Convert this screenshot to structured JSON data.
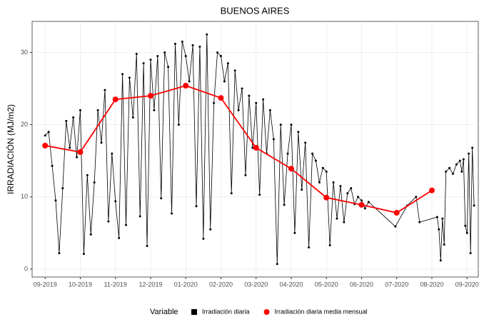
{
  "chart_data": {
    "type": "line",
    "title": "BUENOS AIRES",
    "y_label": "IRRADIACIÓN (MJ/m2)",
    "legend_title": "Variable",
    "xlim": [
      -0.37,
      12.32
    ],
    "ylim": [
      -1.1,
      34.3
    ],
    "xticks": [
      {
        "value": 0,
        "label": "09-2019"
      },
      {
        "value": 1,
        "label": "10-2019"
      },
      {
        "value": 2,
        "label": "11-2019"
      },
      {
        "value": 3,
        "label": "12-2019"
      },
      {
        "value": 4,
        "label": "01-2020"
      },
      {
        "value": 5,
        "label": "02-2020"
      },
      {
        "value": 6,
        "label": "03-2020"
      },
      {
        "value": 7,
        "label": "04-2020"
      },
      {
        "value": 8,
        "label": "05-2020"
      },
      {
        "value": 9,
        "label": "06-2020"
      },
      {
        "value": 10,
        "label": "07-2020"
      },
      {
        "value": 11,
        "label": "08-2020"
      },
      {
        "value": 12,
        "label": "09-2020"
      }
    ],
    "yticks": [
      0,
      10,
      20,
      30
    ],
    "grid": true,
    "legend": "bottom",
    "series": [
      {
        "name": "Irradiación diaria",
        "color": "#000000",
        "marker": "square",
        "x": [
          0,
          0.1,
          0.2,
          0.3,
          0.4,
          0.5,
          0.6,
          0.7,
          0.8,
          0.9,
          1,
          1.1,
          1.2,
          1.3,
          1.4,
          1.5,
          1.6,
          1.7,
          1.8,
          1.9,
          2,
          2.1,
          2.2,
          2.3,
          2.4,
          2.5,
          2.6,
          2.7,
          2.8,
          2.9,
          3,
          3.1,
          3.2,
          3.3,
          3.4,
          3.5,
          3.6,
          3.7,
          3.8,
          3.9,
          4,
          4.1,
          4.2,
          4.3,
          4.4,
          4.5,
          4.6,
          4.7,
          4.8,
          4.9,
          5,
          5.1,
          5.2,
          5.3,
          5.4,
          5.5,
          5.6,
          5.7,
          5.8,
          5.9,
          6,
          6.1,
          6.2,
          6.3,
          6.4,
          6.5,
          6.6,
          6.7,
          6.8,
          6.9,
          7,
          7.1,
          7.2,
          7.3,
          7.4,
          7.5,
          7.6,
          7.7,
          7.8,
          7.9,
          8,
          8.1,
          8.2,
          8.3,
          8.4,
          8.5,
          8.6,
          8.7,
          8.8,
          8.9,
          9,
          9.1,
          9.2,
          9.96,
          10.3,
          10.55,
          10.65,
          11.15,
          11.2,
          11.25,
          11.3,
          11.35,
          11.4,
          11.5,
          11.6,
          11.7,
          11.8,
          11.85,
          11.9,
          11.95,
          12,
          12.05,
          12.1,
          12.15,
          12.2
        ],
        "values": [
          18.5,
          19,
          14.3,
          9.5,
          2.2,
          11.2,
          20.5,
          16.8,
          21,
          15.5,
          22,
          2.1,
          13,
          4.8,
          12,
          22,
          17.5,
          24.8,
          6.6,
          16,
          9.4,
          4.3,
          27,
          6.1,
          26.5,
          21,
          29.8,
          7.3,
          28.5,
          3.2,
          29,
          22,
          29.5,
          9.8,
          30,
          28,
          7.7,
          31.2,
          20,
          31.5,
          29.5,
          26,
          31,
          8.7,
          30.8,
          4.2,
          32.5,
          5.5,
          23,
          30,
          29.5,
          26,
          28.5,
          10.5,
          27.5,
          22,
          25,
          13,
          24,
          16.8,
          23,
          10.3,
          23.5,
          16,
          22,
          18,
          0.7,
          20,
          8.9,
          16,
          20,
          5,
          19,
          11,
          17.5,
          3,
          16,
          15,
          12,
          14,
          13.5,
          3.3,
          12,
          7,
          11.5,
          6.5,
          10.5,
          11.2,
          9,
          10,
          9.5,
          8.4,
          9.3,
          5.9,
          8.8,
          10,
          6.5,
          7.2,
          5.5,
          1.2,
          7,
          3.4,
          13.5,
          14,
          13.2,
          14.5,
          15,
          13.5,
          15.2,
          6,
          5,
          16,
          2.2,
          16.8,
          8.8
        ]
      },
      {
        "name": "Irradiación diaria media mensual",
        "color": "#ff0000",
        "marker": "circle",
        "x": [
          0,
          1,
          2,
          3,
          4,
          5,
          6,
          7,
          8,
          9,
          10,
          11
        ],
        "values": [
          17.1,
          16.2,
          23.5,
          24,
          25.4,
          23.7,
          16.8,
          13.9,
          9.9,
          8.9,
          7.8,
          10.9
        ]
      }
    ]
  }
}
